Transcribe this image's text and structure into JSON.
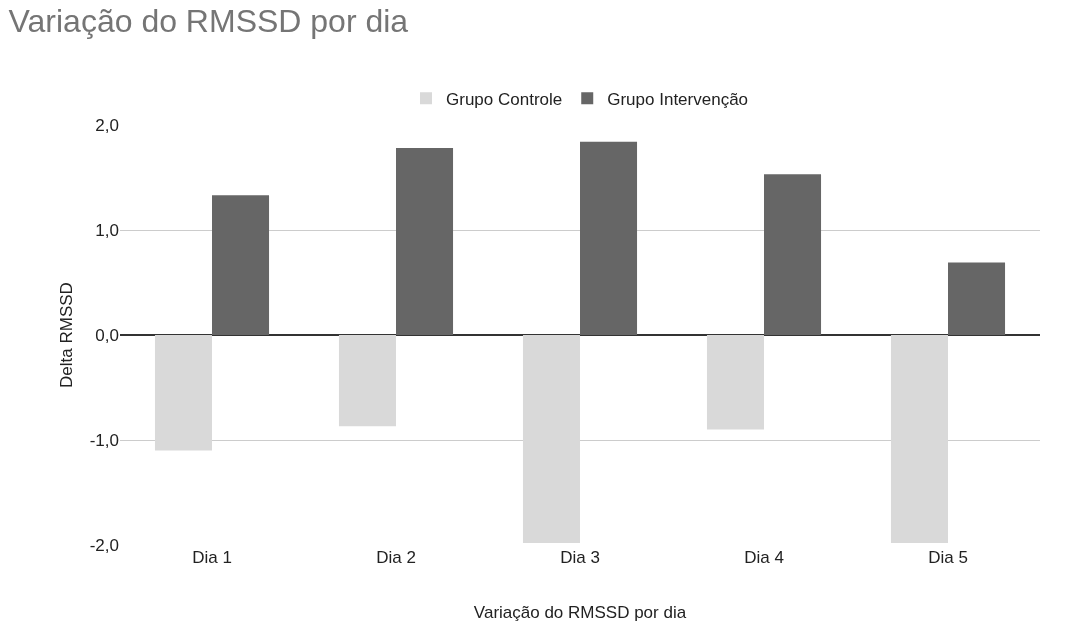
{
  "chart_data": {
    "type": "bar",
    "title": "Variação do RMSSD por dia",
    "xlabel": "Variação do RMSSD por dia",
    "ylabel": "Delta RMSSD",
    "categories": [
      "Dia 1",
      "Dia 2",
      "Dia 3",
      "Dia 4",
      "Dia 5"
    ],
    "series": [
      {
        "name": "Grupo Controle",
        "color": "#d9d9d9",
        "values": [
          -1.1,
          -0.87,
          -1.98,
          -0.9,
          -1.98
        ]
      },
      {
        "name": "Grupo Intervenção",
        "color": "#666666",
        "values": [
          1.33,
          1.78,
          1.84,
          1.53,
          0.69
        ]
      }
    ],
    "ylim": [
      -2,
      2
    ],
    "yticks": [
      {
        "value": -2,
        "label": "-2,0"
      },
      {
        "value": -1,
        "label": "-1,0"
      },
      {
        "value": 0,
        "label": "0,0"
      },
      {
        "value": 1,
        "label": "1,0"
      },
      {
        "value": 2,
        "label": "2,0"
      }
    ],
    "grid": "y",
    "legend": "top"
  }
}
